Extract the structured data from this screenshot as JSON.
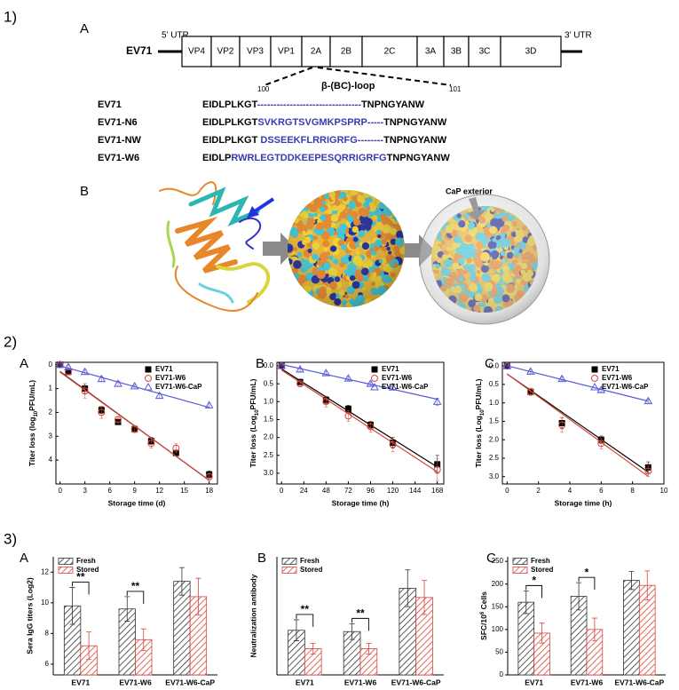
{
  "figure": {
    "section_labels": [
      "1)",
      "2)",
      "3)"
    ],
    "genome": {
      "panel": "A",
      "name": "EV71",
      "utr5": "5’ UTR",
      "utr3": "3’ UTR",
      "segments": [
        "VP4",
        "VP2",
        "VP3",
        "VP1",
        "2A",
        "2B",
        "2C",
        "3A",
        "3B",
        "3C",
        "3D"
      ],
      "loop_start": "100",
      "loop_end": "101",
      "loop_label": "β-(BC)-loop",
      "sequences": [
        {
          "name": "EV71",
          "parts": [
            "EIDLPLKGT",
            "--------------------------------",
            "TNPNGYANW"
          ]
        },
        {
          "name": "EV71-N6",
          "parts": [
            "EIDLPLKGT",
            "SVKRGTSVGMKPSPRP-----",
            "TNPNGYANW"
          ]
        },
        {
          "name": "EV71-NW",
          "parts": [
            "EIDLPLKGT ",
            "DSSEEKFLRRIGRFG--------",
            "TNPNGYANW"
          ]
        },
        {
          "name": "EV71-W6",
          "parts": [
            "EIDLP",
            "RWRLEGTDDKEEPESQRRIGRFG",
            "TNPNGYANW"
          ]
        }
      ]
    },
    "structure": {
      "panel": "B",
      "label": "CaP exterior"
    }
  },
  "chart_data": [
    {
      "type": "scatter",
      "panel": "A",
      "trendline": true,
      "yinverted": true,
      "legend": "upper right",
      "xlabel": "Storage time (d)",
      "ylabel": {
        "text": "Titer loss (log",
        "sub": "10",
        "tail": "PFU/mL)"
      },
      "xlim": [
        -0.5,
        19
      ],
      "xticks": [
        0,
        3,
        6,
        9,
        12,
        15,
        18
      ],
      "ylim": [
        -0.1,
        5
      ],
      "yticks": [
        0,
        1,
        2,
        3,
        4
      ],
      "series": [
        {
          "name": "EV71",
          "color": "#000000",
          "marker": "square",
          "x": [
            0,
            1,
            3,
            5,
            7,
            9,
            11,
            14,
            18
          ],
          "values": [
            0,
            0.3,
            1.0,
            1.9,
            2.4,
            2.7,
            3.2,
            3.7,
            4.6
          ],
          "errors": [
            0,
            0.05,
            0.2,
            0.15,
            0.1,
            0.1,
            0.15,
            0.1,
            0.15
          ]
        },
        {
          "name": "EV71-W6",
          "color": "#d9453a",
          "marker": "circle",
          "x": [
            0,
            1,
            3,
            5,
            7,
            9,
            11,
            14,
            18
          ],
          "values": [
            0,
            0.3,
            1.1,
            2.0,
            2.3,
            2.7,
            3.3,
            3.5,
            4.7
          ],
          "errors": [
            0,
            0.1,
            0.3,
            0.25,
            0.1,
            0.15,
            0.2,
            0.2,
            0.15
          ]
        },
        {
          "name": "EV71-W6-CaP",
          "color": "#5b5bd6",
          "marker": "triangle",
          "x": [
            0,
            1,
            3,
            5,
            7,
            9,
            12,
            18
          ],
          "values": [
            0,
            0.1,
            0.3,
            0.6,
            0.8,
            0.9,
            1.3,
            1.7
          ],
          "errors": [
            0.05,
            0.1,
            0.1,
            0.1,
            0.1,
            0.05,
            0.1,
            0.1
          ]
        }
      ]
    },
    {
      "type": "scatter",
      "panel": "B",
      "trendline": true,
      "yinverted": true,
      "legend": "upper right",
      "xlabel": "Storage time (h)",
      "ylabel": {
        "text": "Titer loss (Log",
        "sub": "10",
        "tail": "PFU/mL)"
      },
      "xlim": [
        -5,
        175
      ],
      "xticks": [
        0,
        24,
        48,
        72,
        96,
        120,
        144,
        168
      ],
      "ylim": [
        -0.1,
        3.3
      ],
      "yticks": [
        {
          "value": 0,
          "label": "0.0"
        },
        0.5,
        {
          "value": 1,
          "label": "1.0"
        },
        1.5,
        {
          "value": 2,
          "label": "2.0"
        },
        2.5,
        {
          "value": 3,
          "label": "3.0"
        }
      ],
      "series": [
        {
          "name": "EV71",
          "color": "#000000",
          "marker": "square",
          "x": [
            0,
            20,
            48,
            72,
            96,
            120,
            168
          ],
          "values": [
            0,
            0.45,
            0.95,
            1.2,
            1.65,
            2.15,
            2.75
          ],
          "errors": [
            0,
            0.05,
            0.1,
            0.1,
            0.1,
            0.15,
            0.25
          ]
        },
        {
          "name": "EV71-W6",
          "color": "#d9453a",
          "marker": "circle",
          "x": [
            0,
            20,
            48,
            72,
            96,
            120,
            168
          ],
          "values": [
            0,
            0.5,
            1.0,
            1.4,
            1.7,
            2.2,
            2.9
          ],
          "errors": [
            0,
            0.05,
            0.15,
            0.15,
            0.15,
            0.2,
            0.3
          ]
        },
        {
          "name": "EV71-W6-CaP",
          "color": "#5b5bd6",
          "marker": "triangle",
          "x": [
            0,
            20,
            48,
            72,
            96,
            120,
            168
          ],
          "values": [
            0,
            0.1,
            0.2,
            0.35,
            0.5,
            0.6,
            1.0
          ],
          "errors": [
            0.03,
            0.05,
            0.05,
            0.05,
            0.05,
            0.05,
            0.1
          ]
        }
      ]
    },
    {
      "type": "scatter",
      "panel": "C",
      "trendline": true,
      "yinverted": true,
      "legend": "upper right",
      "xlabel": "Storage time (h)",
      "ylabel": {
        "text": "Titer loss (Log",
        "sub": "10",
        "tail": "PFU/mL)"
      },
      "xlim": [
        -0.3,
        10
      ],
      "xticks": [
        0,
        2,
        4,
        6,
        8,
        10
      ],
      "ylim": [
        -0.1,
        3.2
      ],
      "yticks": [
        {
          "value": 0,
          "label": "0.0"
        },
        0.5,
        {
          "value": 1,
          "label": "1.0"
        },
        1.5,
        {
          "value": 2,
          "label": "2.0"
        },
        2.5,
        {
          "value": 3,
          "label": "3.0"
        }
      ],
      "series": [
        {
          "name": "EV71",
          "color": "#000000",
          "marker": "square",
          "x": [
            0,
            1.5,
            3.5,
            6,
            9
          ],
          "values": [
            0,
            0.7,
            1.55,
            2.0,
            2.75
          ],
          "errors": [
            0,
            0.05,
            0.15,
            0.1,
            0.15
          ]
        },
        {
          "name": "EV71-W6",
          "color": "#d9453a",
          "marker": "circle",
          "x": [
            0,
            1.5,
            3.5,
            6,
            9
          ],
          "values": [
            0,
            0.7,
            1.6,
            2.1,
            2.85
          ],
          "errors": [
            0,
            0.1,
            0.2,
            0.15,
            0.15
          ]
        },
        {
          "name": "EV71-W6-CaP",
          "color": "#5b5bd6",
          "marker": "triangle",
          "x": [
            0,
            1.5,
            3.5,
            6,
            9
          ],
          "values": [
            0,
            0.15,
            0.35,
            0.65,
            0.95
          ],
          "errors": [
            0.03,
            0.05,
            0.05,
            0.05,
            0.05
          ]
        }
      ]
    },
    {
      "type": "bar",
      "panel": "A",
      "legend": "upper left",
      "ylabel": "Sera IgG titers (Log2)",
      "categories": [
        "EV71",
        "EV71-W6",
        "EV71-W6-CaP"
      ],
      "ylim": [
        5.3,
        13
      ],
      "yticks": [
        6,
        8,
        10,
        12
      ],
      "series": [
        {
          "name": "Fresh",
          "color": "#333333",
          "values": [
            9.8,
            9.6,
            11.4
          ],
          "errors": [
            1.2,
            0.8,
            0.9
          ]
        },
        {
          "name": "Stored",
          "color": "#d9453a",
          "values": [
            7.2,
            7.6,
            10.4
          ],
          "errors": [
            0.9,
            0.7,
            1.2
          ]
        }
      ],
      "annotations": [
        {
          "label": "**",
          "category": 0
        },
        {
          "label": "**",
          "category": 1
        }
      ]
    },
    {
      "type": "bar",
      "panel": "B",
      "legend": "upper left",
      "ylabel": "Neutralization antibody",
      "categories": [
        "EV71",
        "EV71-W6",
        "EV71-W6-CaP"
      ],
      "ylim": [
        0,
        90
      ],
      "series": [
        {
          "name": "Fresh",
          "color": "#333333",
          "values": [
            34,
            33,
            66
          ],
          "errors": [
            8,
            6,
            14
          ]
        },
        {
          "name": "Stored",
          "color": "#d9453a",
          "values": [
            20,
            20,
            59
          ],
          "errors": [
            4,
            4,
            13
          ]
        }
      ],
      "annotations": [
        {
          "label": "**",
          "category": 0
        },
        {
          "label": "**",
          "category": 1
        }
      ]
    },
    {
      "type": "bar",
      "panel": "C",
      "legend": "upper left",
      "ylabel": {
        "text": "SFC/10",
        "sup": "6",
        "tail": " Cells"
      },
      "categories": [
        "EV71",
        "EV71-W6",
        "EV71-W6-CaP"
      ],
      "ylim": [
        0,
        260
      ],
      "yticks": [
        0,
        50,
        100,
        150,
        200,
        250
      ],
      "series": [
        {
          "name": "Fresh",
          "color": "#333333",
          "values": [
            160,
            173,
            208
          ],
          "errors": [
            25,
            30,
            20
          ]
        },
        {
          "name": "Stored",
          "color": "#d9453a",
          "values": [
            92,
            100,
            197
          ],
          "errors": [
            22,
            25,
            32
          ]
        }
      ],
      "annotations": [
        {
          "label": "*",
          "category": 0
        },
        {
          "label": "*",
          "category": 1
        }
      ]
    }
  ]
}
